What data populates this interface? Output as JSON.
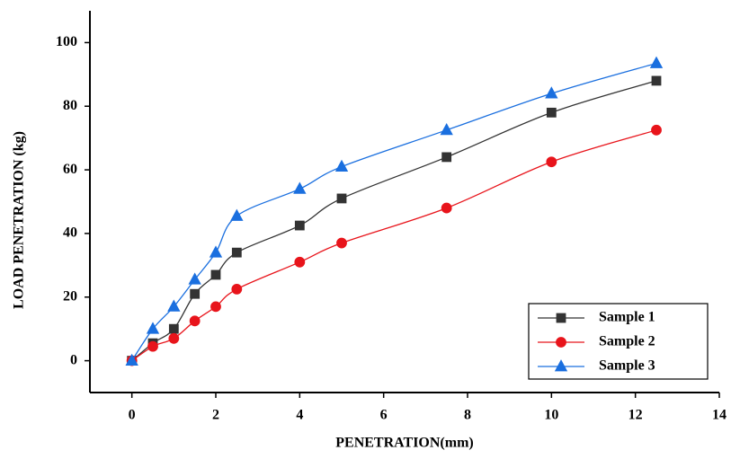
{
  "chart_data": {
    "type": "line",
    "xlabel": "PENETRATION(mm)",
    "ylabel": "LOAD PENETRATION (kg)",
    "x": [
      0,
      0.5,
      1,
      1.5,
      2,
      2.5,
      4,
      5,
      7.5,
      10,
      12.5
    ],
    "series": [
      {
        "name": "Sample 1",
        "color": "#333333",
        "marker": "square",
        "values": [
          0,
          5.5,
          10,
          21,
          27,
          34,
          42.5,
          51,
          64,
          78,
          88
        ]
      },
      {
        "name": "Sample 2",
        "color": "#e8141b",
        "marker": "circle",
        "values": [
          0,
          4.5,
          7,
          12.5,
          17,
          22.5,
          31,
          37,
          48,
          62.5,
          72.5
        ]
      },
      {
        "name": "Sample 3",
        "color": "#1a6fdf",
        "marker": "triangle",
        "values": [
          0,
          10,
          17,
          25.5,
          34,
          45.5,
          54,
          61,
          72.5,
          84,
          93.5
        ]
      }
    ],
    "xlim": [
      -1,
      14
    ],
    "xticks": [
      0,
      2,
      4,
      6,
      8,
      10,
      12,
      14
    ],
    "ylim": [
      -10,
      110
    ],
    "yticks": [
      0,
      20,
      40,
      60,
      80,
      100
    ],
    "legend": "lower right"
  }
}
